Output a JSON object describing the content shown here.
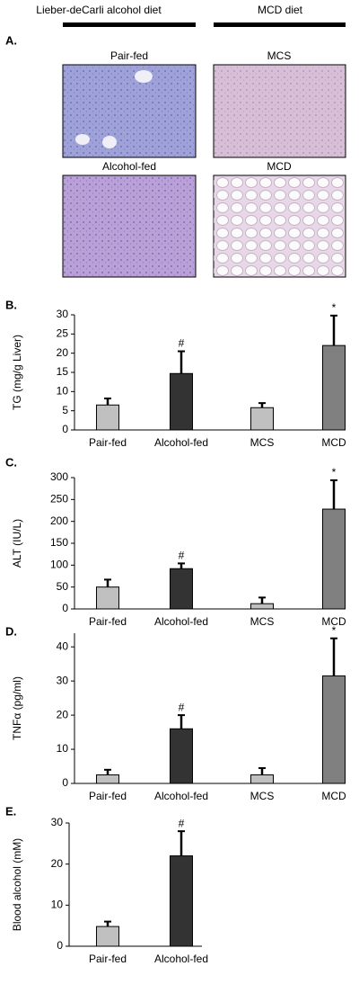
{
  "header": {
    "left": "Lieber-deCarli alcohol diet",
    "right": "MCD diet"
  },
  "panel_a": {
    "label": "A.",
    "images": [
      "Pair-fed",
      "MCS",
      "Alcohol-fed",
      "MCD"
    ]
  },
  "chart_data": [
    {
      "type": "bar",
      "panel_label": "B.",
      "y_label": "TG (mg/g Liver)",
      "categories": [
        "Pair-fed",
        "Alcohol-fed",
        "MCS",
        "MCD"
      ],
      "values": [
        6.5,
        14.7,
        5.8,
        22
      ],
      "errors": [
        1.7,
        5.8,
        1.2,
        7.8
      ],
      "annotations": [
        null,
        "#",
        null,
        "*"
      ],
      "colors": [
        "#c0c0c0",
        "#333333",
        "#c0c0c0",
        "#808080"
      ],
      "ylim": [
        0,
        30
      ],
      "yticks": [
        0,
        5,
        10,
        15,
        20,
        25,
        30
      ]
    },
    {
      "type": "bar",
      "panel_label": "C.",
      "y_label": "ALT (IU/L)",
      "categories": [
        "Pair-fed",
        "Alcohol-fed",
        "MCS",
        "MCD"
      ],
      "values": [
        50,
        92,
        12,
        228
      ],
      "errors": [
        17,
        12,
        14,
        66
      ],
      "annotations": [
        null,
        "#",
        null,
        "*"
      ],
      "colors": [
        "#c0c0c0",
        "#333333",
        "#c0c0c0",
        "#808080"
      ],
      "ylim": [
        0,
        300
      ],
      "yticks": [
        0,
        50,
        100,
        150,
        200,
        250,
        300
      ]
    },
    {
      "type": "bar",
      "panel_label": "D.",
      "y_label": "TNFα (pg/ml)",
      "categories": [
        "Pair-fed",
        "Alcohol-fed",
        "MCS",
        "MCD"
      ],
      "values": [
        2.5,
        16,
        2.5,
        31.5
      ],
      "errors": [
        1.5,
        4,
        2,
        11
      ],
      "annotations": [
        null,
        "#",
        null,
        "*"
      ],
      "colors": [
        "#c0c0c0",
        "#333333",
        "#c0c0c0",
        "#808080"
      ],
      "ylim": [
        0,
        44
      ],
      "yticks": [
        0,
        10,
        20,
        30,
        40
      ]
    },
    {
      "type": "bar",
      "panel_label": "E.",
      "y_label": "Blood alcohol (mM)",
      "categories": [
        "Pair-fed",
        "Alcohol-fed"
      ],
      "values": [
        4.8,
        22
      ],
      "errors": [
        1.2,
        6
      ],
      "annotations": [
        null,
        "#"
      ],
      "colors": [
        "#c0c0c0",
        "#333333"
      ],
      "ylim": [
        0,
        30
      ],
      "yticks": [
        0,
        10,
        20,
        30
      ]
    }
  ]
}
